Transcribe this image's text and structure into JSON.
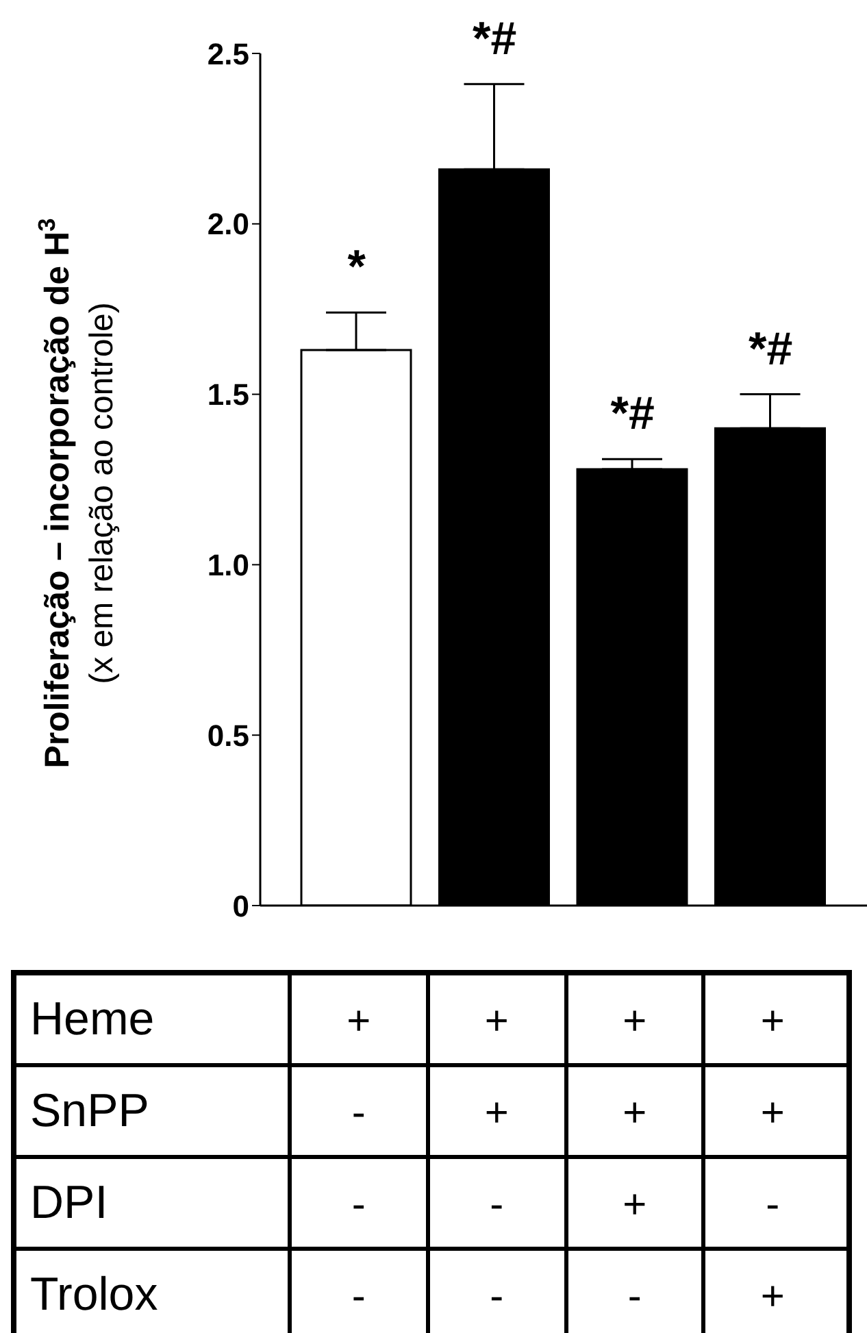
{
  "chart_data": {
    "type": "bar",
    "ylabel": "Proliferação – incorporação de H$^{3}$\n(x em relação ao controle)",
    "categories": [
      "+\n-\n-\n-",
      "+\n+\n-\n-",
      "+\n+\n+\n-",
      "+\n+\n-\n+"
    ],
    "values": [
      1.63,
      2.16,
      1.28,
      1.4
    ],
    "errors": [
      [
        1.63,
        1.74
      ],
      [
        2.16,
        2.41
      ],
      [
        1.28,
        1.31
      ],
      [
        1.4,
        1.5
      ]
    ],
    "colors": [
      "#ffffff",
      "#000000",
      "#000000",
      "#000000"
    ],
    "ylim": [
      0,
      2.5
    ],
    "yticks": [
      0,
      0.5,
      {
        "value": 1,
        "label": "1.0"
      },
      1.5,
      {
        "value": 2,
        "label": "2.0"
      },
      2.5
    ],
    "annotations": [
      {
        "text": "*",
        "x": "+\n-\n-\n-",
        "y": 1.74
      },
      {
        "text": "*#",
        "x": "+\n+\n-\n-",
        "y": 2.41
      },
      {
        "text": "*#",
        "x": "+\n+\n+\n-",
        "y": 1.31
      },
      {
        "text": "*#",
        "x": "+\n+\n-\n+",
        "y": 1.5
      },
      "Heme",
      "SnPP",
      "DPI",
      "Trolox"
    ]
  }
}
